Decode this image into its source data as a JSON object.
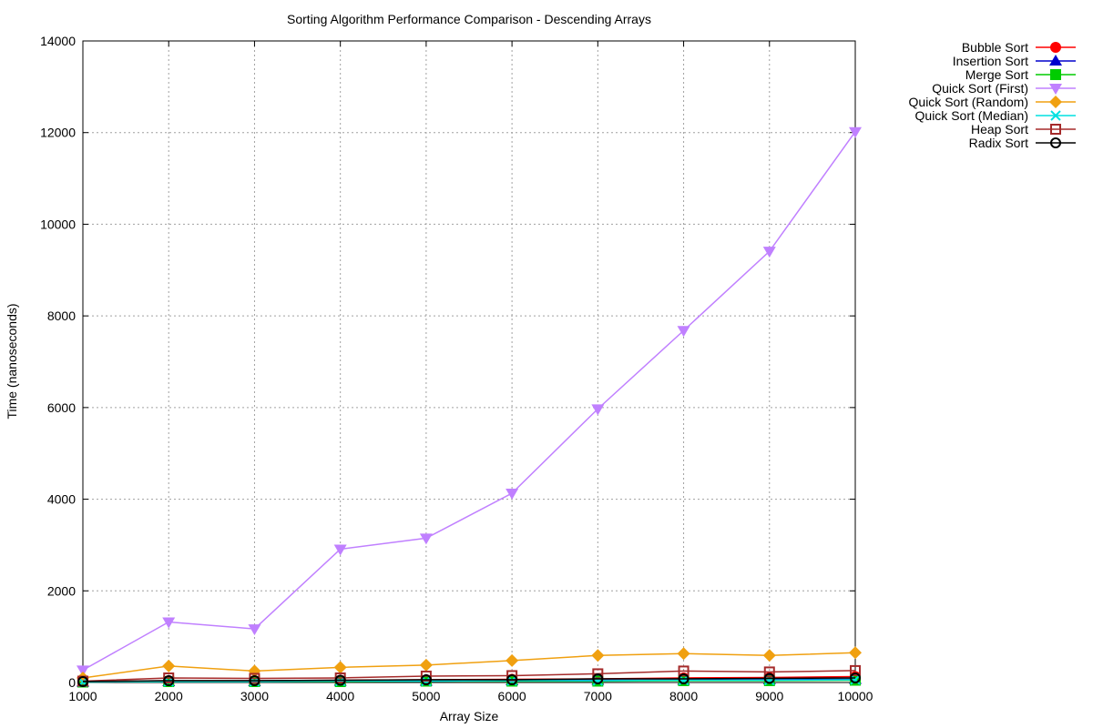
{
  "chart_data": {
    "type": "line",
    "title": "Sorting Algorithm Performance Comparison - Descending Arrays",
    "xlabel": "Array Size",
    "ylabel": "Time (nanoseconds)",
    "x": [
      1000,
      2000,
      3000,
      4000,
      5000,
      6000,
      7000,
      8000,
      9000,
      10000
    ],
    "xlim": [
      1000,
      10000
    ],
    "ylim": [
      0,
      14000
    ],
    "xticks": [
      "1000",
      "2000",
      "3000",
      "4000",
      "5000",
      "6000",
      "7000",
      "8000",
      "9000",
      "10000"
    ],
    "yticks": [
      "0",
      "2000",
      "4000",
      "6000",
      "8000",
      "10000",
      "12000",
      "14000"
    ],
    "grid": true,
    "legend_position": "outside-top-right",
    "series": [
      {
        "name": "Bubble Sort",
        "color": "#ff0000",
        "marker": "circle-filled",
        "values": [
          20,
          40,
          40,
          50,
          60,
          70,
          80,
          100,
          110,
          130
        ]
      },
      {
        "name": "Insertion Sort",
        "color": "#0000cc",
        "marker": "triangle-filled",
        "values": [
          10,
          20,
          20,
          30,
          30,
          40,
          50,
          50,
          60,
          70
        ]
      },
      {
        "name": "Merge Sort",
        "color": "#00cc00",
        "marker": "square-filled",
        "values": [
          10,
          20,
          20,
          20,
          30,
          30,
          30,
          40,
          40,
          50
        ]
      },
      {
        "name": "Quick Sort (First)",
        "color": "#c080ff",
        "marker": "triangle-down-filled",
        "values": [
          270,
          1320,
          1170,
          2910,
          3150,
          4130,
          5970,
          7680,
          9410,
          12020
        ]
      },
      {
        "name": "Quick Sort (Random)",
        "color": "#f0a010",
        "marker": "diamond-filled",
        "values": [
          100,
          360,
          250,
          330,
          380,
          480,
          590,
          630,
          590,
          650
        ]
      },
      {
        "name": "Quick Sort (Median)",
        "color": "#00e0e0",
        "marker": "cross",
        "values": [
          10,
          20,
          20,
          30,
          30,
          40,
          40,
          50,
          50,
          60
        ]
      },
      {
        "name": "Heap Sort",
        "color": "#a52a2a",
        "marker": "square-open",
        "values": [
          30,
          100,
          90,
          100,
          140,
          150,
          190,
          250,
          230,
          260
        ]
      },
      {
        "name": "Radix Sort",
        "color": "#000000",
        "marker": "circle-open",
        "values": [
          20,
          40,
          40,
          50,
          60,
          60,
          80,
          80,
          90,
          100
        ]
      }
    ]
  }
}
